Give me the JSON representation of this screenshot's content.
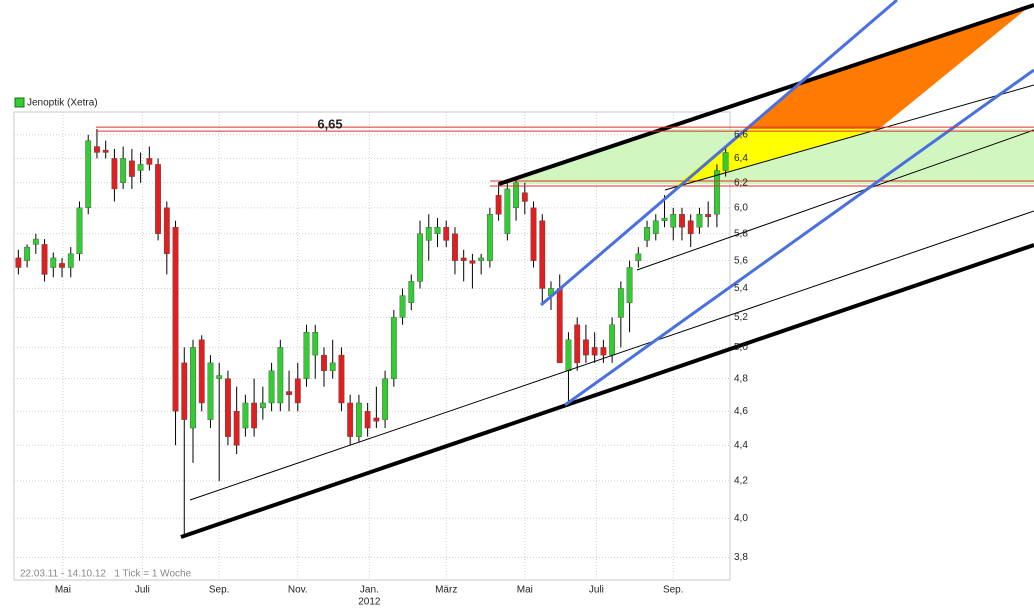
{
  "chart_data": {
    "type": "candlestick",
    "legend": "Jenoptik (Xetra)",
    "footer": "22.03.11 - 14.10.12   1 Tick = 1 Woche",
    "year_label": "2012",
    "log_scale": true,
    "grid": true,
    "up_color": "#33cc33",
    "down_color": "#e02020",
    "xlim": [
      -0.5,
      81.5
    ],
    "xticks": [
      {
        "value": 5.1,
        "label": "Mai"
      },
      {
        "value": 14.2,
        "label": "Juli"
      },
      {
        "value": 23,
        "label": "Sep."
      },
      {
        "value": 32,
        "label": "Nov."
      },
      {
        "value": 40.2,
        "label": "Jan."
      },
      {
        "value": 49,
        "label": "März"
      },
      {
        "value": 58,
        "label": "Mai"
      },
      {
        "value": 66.2,
        "label": "Juli"
      },
      {
        "value": 75,
        "label": "Sep."
      }
    ],
    "ylim": [
      3.69,
      6.8
    ],
    "yticks": [
      {
        "value": 3.8,
        "label": "3,8"
      },
      {
        "value": 4.0,
        "label": "4,0"
      },
      {
        "value": 4.2,
        "label": "4,2"
      },
      {
        "value": 4.4,
        "label": "4,4"
      },
      {
        "value": 4.6,
        "label": "4,6"
      },
      {
        "value": 4.8,
        "label": "4,8"
      },
      {
        "value": 5.0,
        "label": "5,0"
      },
      {
        "value": 5.2,
        "label": "5,2"
      },
      {
        "value": 5.4,
        "label": "5,4"
      },
      {
        "value": 5.6,
        "label": "5,6"
      },
      {
        "value": 5.8,
        "label": "5,8"
      },
      {
        "value": 6.0,
        "label": "6,0"
      },
      {
        "value": 6.2,
        "label": "6,2"
      },
      {
        "value": 6.4,
        "label": "6,4"
      },
      {
        "value": 6.6,
        "label": "6,6"
      }
    ],
    "annotation": {
      "label": "6,65",
      "value": 6.65
    },
    "values": [
      [
        5.62,
        5.68,
        5.5,
        5.55
      ],
      [
        5.6,
        5.72,
        5.55,
        5.7
      ],
      [
        5.72,
        5.8,
        5.65,
        5.76
      ],
      [
        5.72,
        5.76,
        5.45,
        5.5
      ],
      [
        5.55,
        5.66,
        5.48,
        5.62
      ],
      [
        5.58,
        5.62,
        5.48,
        5.55
      ],
      [
        5.55,
        5.7,
        5.48,
        5.65
      ],
      [
        5.65,
        6.05,
        5.6,
        6.0
      ],
      [
        6.0,
        6.6,
        5.95,
        6.55
      ],
      [
        6.5,
        6.65,
        6.4,
        6.45
      ],
      [
        6.47,
        6.55,
        6.4,
        6.45
      ],
      [
        6.4,
        6.48,
        6.05,
        6.15
      ],
      [
        6.2,
        6.5,
        6.15,
        6.4
      ],
      [
        6.38,
        6.48,
        6.15,
        6.25
      ],
      [
        6.3,
        6.45,
        6.2,
        6.35
      ],
      [
        6.4,
        6.5,
        6.3,
        6.35
      ],
      [
        6.35,
        6.4,
        5.75,
        5.8
      ],
      [
        6.0,
        6.05,
        5.5,
        5.65
      ],
      [
        5.85,
        5.9,
        4.4,
        4.6
      ],
      [
        4.9,
        5.0,
        3.92,
        4.55
      ],
      [
        4.5,
        5.05,
        4.3,
        5.0
      ],
      [
        5.05,
        5.08,
        4.6,
        4.65
      ],
      [
        4.55,
        4.95,
        4.5,
        4.9
      ],
      [
        4.8,
        4.9,
        4.2,
        4.82
      ],
      [
        4.8,
        4.85,
        4.4,
        4.45
      ],
      [
        4.6,
        4.75,
        4.35,
        4.4
      ],
      [
        4.5,
        4.7,
        4.45,
        4.65
      ],
      [
        4.65,
        4.8,
        4.45,
        4.5
      ],
      [
        4.62,
        4.75,
        4.55,
        4.65
      ],
      [
        4.65,
        4.9,
        4.6,
        4.85
      ],
      [
        4.65,
        5.05,
        4.6,
        5.0
      ],
      [
        4.72,
        4.85,
        4.6,
        4.7
      ],
      [
        4.8,
        4.9,
        4.6,
        4.65
      ],
      [
        4.8,
        5.15,
        4.75,
        5.1
      ],
      [
        4.95,
        5.15,
        4.8,
        5.1
      ],
      [
        4.95,
        5.0,
        4.75,
        4.85
      ],
      [
        4.85,
        5.05,
        4.8,
        4.9
      ],
      [
        4.95,
        5.0,
        4.6,
        4.65
      ],
      [
        4.65,
        4.7,
        4.4,
        4.45
      ],
      [
        4.45,
        4.7,
        4.42,
        4.65
      ],
      [
        4.6,
        4.65,
        4.45,
        4.5
      ],
      [
        4.56,
        4.75,
        4.5,
        4.54
      ],
      [
        4.55,
        4.85,
        4.5,
        4.8
      ],
      [
        4.8,
        5.25,
        4.75,
        5.2
      ],
      [
        5.2,
        5.4,
        5.15,
        5.35
      ],
      [
        5.3,
        5.5,
        5.25,
        5.45
      ],
      [
        5.45,
        5.9,
        5.4,
        5.8
      ],
      [
        5.75,
        5.95,
        5.6,
        5.85
      ],
      [
        5.8,
        5.92,
        5.7,
        5.85
      ],
      [
        5.85,
        5.9,
        5.7,
        5.75
      ],
      [
        5.8,
        5.85,
        5.5,
        5.6
      ],
      [
        5.62,
        5.68,
        5.45,
        5.6
      ],
      [
        5.6,
        5.65,
        5.4,
        5.58
      ],
      [
        5.6,
        5.65,
        5.5,
        5.62
      ],
      [
        5.6,
        6.0,
        5.55,
        5.95
      ],
      [
        6.1,
        6.2,
        5.9,
        5.95
      ],
      [
        5.8,
        6.2,
        5.75,
        6.15
      ],
      [
        6.0,
        6.25,
        5.9,
        6.2
      ],
      [
        6.12,
        6.2,
        5.95,
        6.05
      ],
      [
        6.0,
        6.05,
        5.55,
        5.6
      ],
      [
        5.9,
        5.95,
        5.3,
        5.4
      ],
      [
        5.35,
        5.45,
        5.25,
        5.4
      ],
      [
        5.4,
        5.5,
        4.9,
        4.9
      ],
      [
        4.85,
        5.1,
        4.65,
        5.05
      ],
      [
        5.15,
        5.2,
        4.85,
        4.9
      ],
      [
        5.05,
        5.15,
        4.9,
        4.95
      ],
      [
        5.0,
        5.1,
        4.9,
        4.95
      ],
      [
        5.0,
        5.05,
        4.9,
        4.95
      ],
      [
        4.95,
        5.2,
        4.9,
        5.15
      ],
      [
        5.2,
        5.45,
        5.0,
        5.4
      ],
      [
        5.3,
        5.6,
        5.1,
        5.55
      ],
      [
        5.6,
        5.7,
        5.55,
        5.65
      ],
      [
        5.75,
        5.9,
        5.7,
        5.85
      ],
      [
        5.8,
        5.95,
        5.75,
        5.9
      ],
      [
        5.9,
        6.1,
        5.85,
        5.92
      ],
      [
        5.85,
        6.0,
        5.75,
        5.95
      ],
      [
        5.95,
        6.0,
        5.75,
        5.85
      ],
      [
        5.9,
        5.95,
        5.7,
        5.8
      ],
      [
        5.85,
        6.0,
        5.8,
        5.95
      ],
      [
        5.95,
        6.05,
        5.85,
        5.93
      ],
      [
        5.95,
        6.35,
        5.85,
        6.3
      ],
      [
        6.3,
        6.5,
        6.25,
        6.45
      ]
    ]
  }
}
